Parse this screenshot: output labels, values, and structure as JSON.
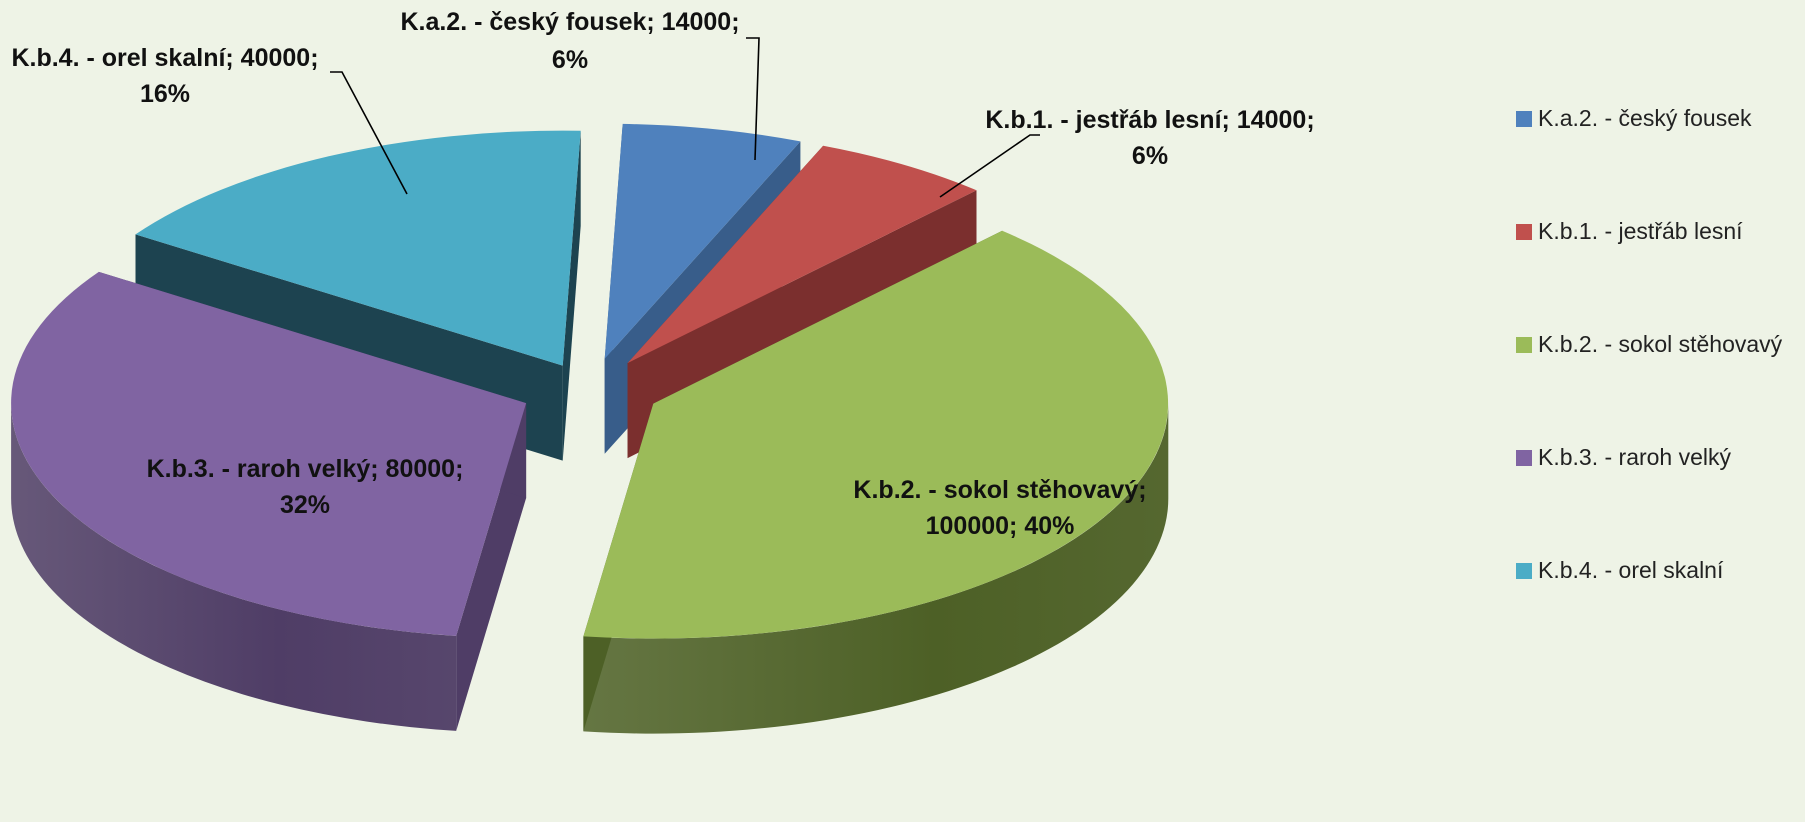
{
  "chart_data": {
    "type": "pie",
    "style": "3d-exploded",
    "title": "",
    "legend_position": "right",
    "slices": [
      {
        "label": "K.a.2. - český fousek",
        "value": 14000,
        "percent": "6%",
        "color": "#4f81bd",
        "side": "#385d8a",
        "data_label": [
          "K.a.2. - český fousek; 14000;",
          "6%"
        ]
      },
      {
        "label": "K.b.1. - jestřáb lesní",
        "value": 14000,
        "percent": "6%",
        "color": "#c0504d",
        "side": "#7b2f2e",
        "data_label": [
          "K.b.1. - jestřáb lesní; 14000;",
          "6%"
        ]
      },
      {
        "label": "K.b.2. - sokol stěhovavý",
        "value": 100000,
        "percent": "40%",
        "color": "#9bbb59",
        "side": "#4d6026",
        "data_label": [
          "K.b.2. - sokol stěhovavý;",
          "100000; 40%"
        ]
      },
      {
        "label": "K.b.3. - raroh velký",
        "value": 80000,
        "percent": "32%",
        "color": "#8064a2",
        "side": "#4f3d66",
        "data_label": [
          "K.b.3. - raroh velký; 80000;",
          "32%"
        ]
      },
      {
        "label": "K.b.4. - orel skalní",
        "value": 40000,
        "percent": "16%",
        "color": "#4bacc6",
        "side": "#1d4350",
        "data_label": [
          "K.b.4. - orel skalní; 40000;",
          "16%"
        ]
      }
    ]
  }
}
